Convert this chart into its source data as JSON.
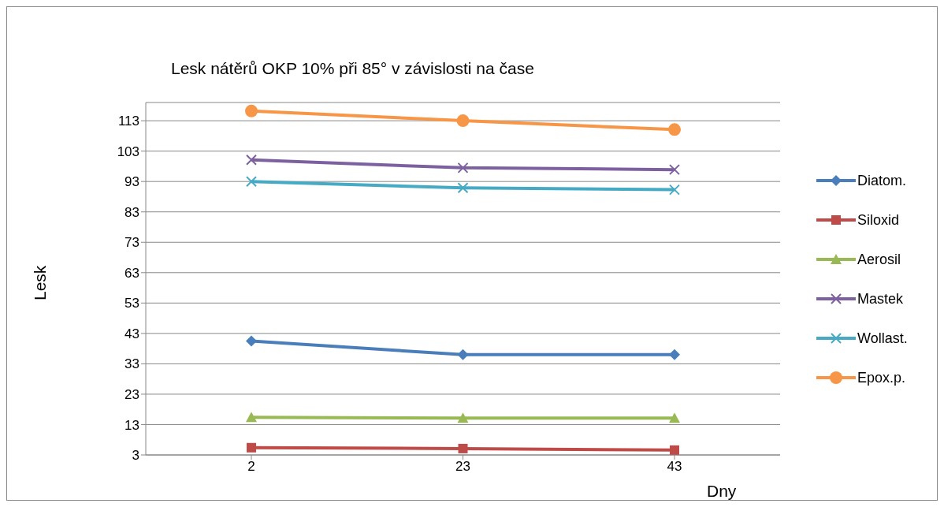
{
  "chart_data": {
    "type": "line",
    "title": "Lesk nátěrů OKP 10% při 85° v závislosti na čase",
    "xlabel": "Dny",
    "ylabel": "Lesk",
    "categories": [
      "2",
      "23",
      "43"
    ],
    "ylim": [
      3,
      119
    ],
    "yticks": [
      3,
      13,
      23,
      33,
      43,
      53,
      63,
      73,
      83,
      93,
      103,
      113
    ],
    "grid": "y",
    "legend": "right",
    "line_style": "solid",
    "series": [
      {
        "name": "Diatom.",
        "color": "#4a7ebb",
        "marker": "diamond",
        "values": [
          40.5,
          36,
          36
        ]
      },
      {
        "name": "Siloxid",
        "color": "#be4b48",
        "marker": "square",
        "values": [
          5.4,
          5.1,
          4.6
        ]
      },
      {
        "name": "Aerosil",
        "color": "#98b954",
        "marker": "triangle",
        "values": [
          15.4,
          15.1,
          15.1
        ]
      },
      {
        "name": "Mastek",
        "color": "#7d60a0",
        "marker": "cross",
        "values": [
          100.1,
          97.5,
          96.9
        ]
      },
      {
        "name": "Wollast.",
        "color": "#46aac5",
        "marker": "cross",
        "values": [
          93,
          90.9,
          90.3
        ]
      },
      {
        "name": "Epox.p.",
        "color": "#f79646",
        "marker": "circle",
        "values": [
          116.2,
          113,
          110.1
        ]
      }
    ]
  }
}
